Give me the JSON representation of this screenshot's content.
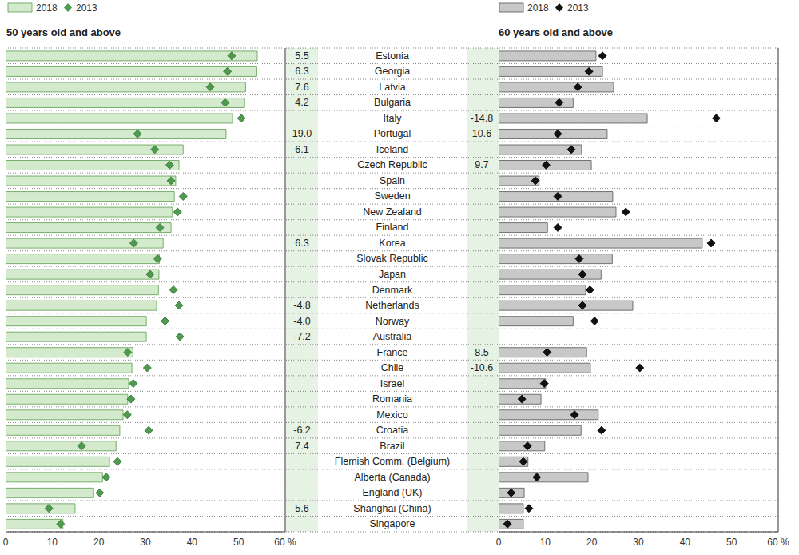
{
  "chart_data": [
    {
      "type": "bar",
      "orientation": "horizontal",
      "subtitle": "50 years old and above",
      "legend": "top left",
      "categories": [
        "Estonia",
        "Georgia",
        "Latvia",
        "Bulgaria",
        "Italy",
        "Portugal",
        "Iceland",
        "Czech Republic",
        "Spain",
        "Sweden",
        "New Zealand",
        "Finland",
        "Korea",
        "Slovak Republic",
        "Japan",
        "Denmark",
        "Netherlands",
        "Norway",
        "Australia",
        "France",
        "Chile",
        "Israel",
        "Romania",
        "Mexico",
        "Croatia",
        "Brazil",
        "Flemish Comm. (Belgium)",
        "Alberta (Canada)",
        "England (UK)",
        "Shanghai (China)",
        "Singapore"
      ],
      "series": [
        {
          "name": "2018",
          "type": "bar",
          "color": "#d3ebcc",
          "values": [
            54.0,
            53.9,
            51.5,
            51.3,
            48.7,
            47.3,
            38.1,
            37.2,
            36.5,
            36.2,
            35.8,
            35.5,
            33.8,
            33.0,
            32.9,
            32.8,
            32.4,
            30.2,
            30.2,
            27.3,
            27.1,
            26.4,
            26.2,
            25.2,
            24.5,
            23.7,
            22.3,
            20.8,
            18.9,
            14.9,
            12.3
          ]
        },
        {
          "name": "2013",
          "type": "scatter",
          "marker": "diamond",
          "color": "#4f9a4f",
          "values": [
            48.5,
            47.6,
            43.9,
            47.1,
            50.6,
            28.3,
            32.0,
            35.2,
            35.5,
            38.1,
            36.9,
            33.1,
            27.5,
            32.6,
            31.0,
            36.0,
            37.2,
            34.2,
            37.4,
            26.2,
            30.4,
            27.4,
            26.9,
            26.1,
            30.7,
            16.3,
            24.0,
            21.6,
            20.2,
            9.3,
            11.8
          ]
        }
      ],
      "differences": [
        "5.5",
        "6.3",
        "7.6",
        "4.2",
        null,
        "19.0",
        "6.1",
        null,
        null,
        null,
        null,
        null,
        "6.3",
        null,
        null,
        null,
        "-4.8",
        "-4.0",
        "-7.2",
        null,
        null,
        null,
        null,
        null,
        "-6.2",
        "7.4",
        null,
        null,
        null,
        "5.6",
        null
      ],
      "xlim": [
        0,
        60
      ],
      "xticks": [
        0,
        10,
        20,
        30,
        40,
        50,
        {
          "value": 60,
          "label": "60 %"
        }
      ]
    },
    {
      "type": "bar",
      "orientation": "horizontal",
      "subtitle": "60 years old and above",
      "legend": "top left",
      "categories": [
        "Estonia",
        "Georgia",
        "Latvia",
        "Bulgaria",
        "Italy",
        "Portugal",
        "Iceland",
        "Czech Republic",
        "Spain",
        "Sweden",
        "New Zealand",
        "Finland",
        "Korea",
        "Slovak Republic",
        "Japan",
        "Denmark",
        "Netherlands",
        "Norway",
        "Australia",
        "France",
        "Chile",
        "Israel",
        "Romania",
        "Mexico",
        "Croatia",
        "Brazil",
        "Flemish Comm. (Belgium)",
        "Alberta (Canada)",
        "England (UK)",
        "Shanghai (China)",
        "Singapore"
      ],
      "series": [
        {
          "name": "2018",
          "type": "bar",
          "color": "#c8c8c8",
          "values": [
            20.9,
            22.3,
            24.7,
            16.0,
            31.9,
            23.3,
            17.8,
            19.9,
            8.7,
            24.5,
            25.2,
            10.5,
            43.7,
            24.4,
            22.0,
            18.7,
            28.8,
            16.0,
            null,
            18.9,
            19.7,
            10.1,
            9.1,
            21.4,
            17.7,
            9.9,
            6.3,
            19.2,
            5.5,
            5.3,
            5.3
          ]
        },
        {
          "name": "2013",
          "type": "scatter",
          "marker": "diamond",
          "color": "#111111",
          "values": [
            22.3,
            19.4,
            17.0,
            13.0,
            46.7,
            12.7,
            15.6,
            10.2,
            7.9,
            12.7,
            27.3,
            12.7,
            45.6,
            17.3,
            18.0,
            19.6,
            18.0,
            20.6,
            null,
            10.4,
            30.3,
            9.8,
            5.0,
            16.3,
            22.1,
            6.2,
            5.3,
            8.2,
            2.7,
            6.5,
            1.9
          ]
        }
      ],
      "differences": [
        null,
        null,
        null,
        null,
        "-14.8",
        "10.6",
        null,
        "9.7",
        null,
        null,
        null,
        null,
        null,
        null,
        null,
        null,
        null,
        null,
        null,
        "8.5",
        "-10.6",
        null,
        null,
        null,
        null,
        null,
        null,
        null,
        null,
        null,
        null
      ],
      "xlim": [
        0,
        60
      ],
      "xticks": [
        0,
        10,
        20,
        30,
        40,
        50,
        {
          "value": 60,
          "label": "60 %"
        }
      ]
    }
  ]
}
